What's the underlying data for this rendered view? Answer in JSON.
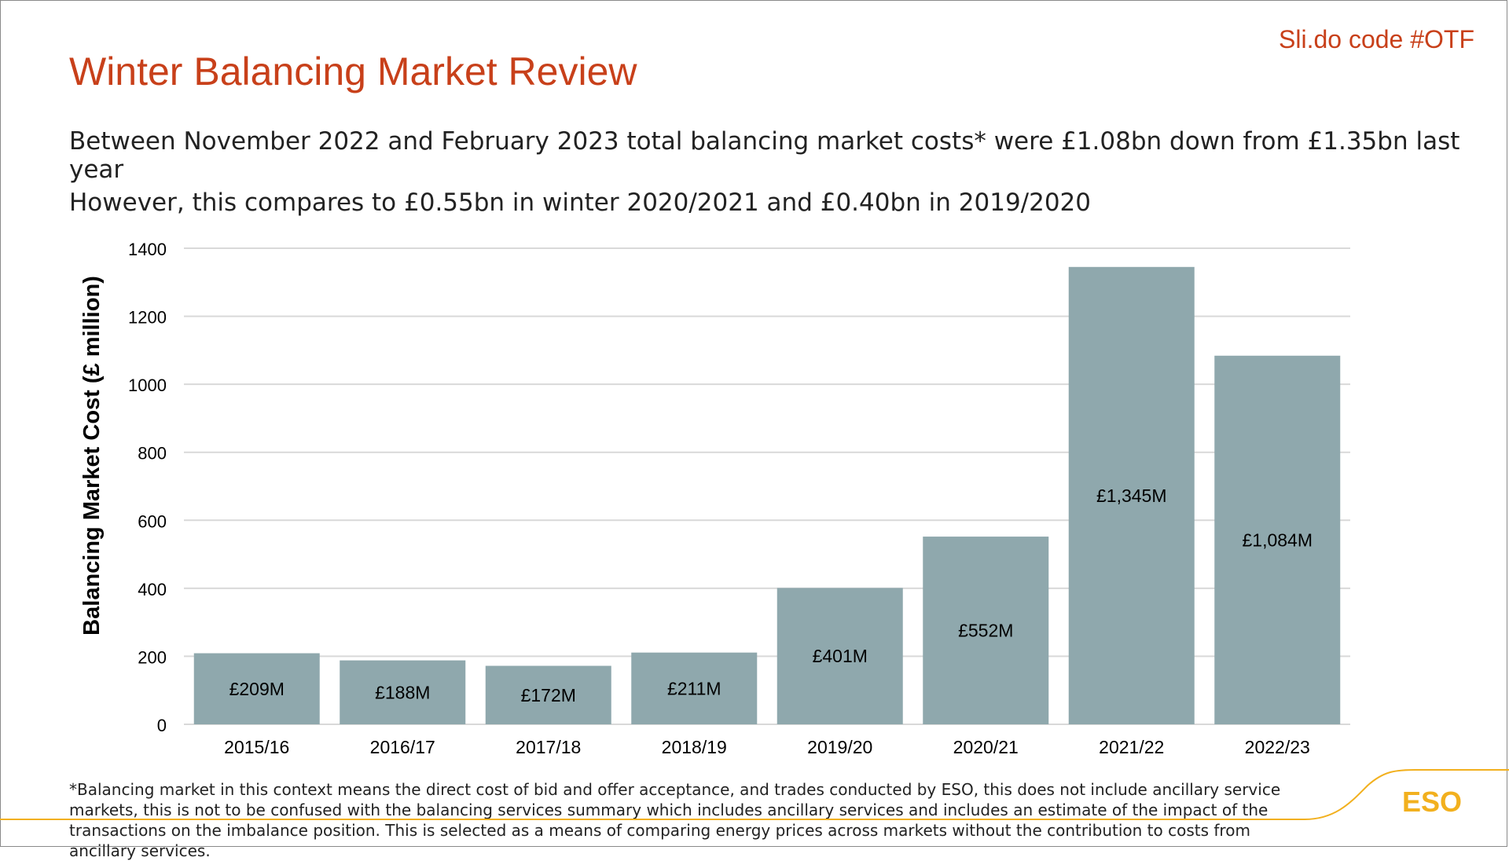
{
  "header": {
    "slido_code": "Sli.do code #OTF",
    "title": "Winter Balancing Market Review",
    "subtitle_1": "Between November 2022 and February 2023 total balancing market costs* were £1.08bn down from £1.35bn last year",
    "subtitle_2": "However, this compares to £0.55bn in winter 2020/2021 and £0.40bn in 2019/2020"
  },
  "chart_data": {
    "type": "bar",
    "title": "",
    "xlabel": "",
    "ylabel": "Balancing Market Cost (£ million)",
    "categories": [
      "2015/16",
      "2016/17",
      "2017/18",
      "2018/19",
      "2019/20",
      "2020/21",
      "2021/22",
      "2022/23"
    ],
    "values": [
      209,
      188,
      172,
      211,
      401,
      552,
      1345,
      1084
    ],
    "data_labels": [
      "£209M",
      "£188M",
      "£172M",
      "£211M",
      "£401M",
      "£552M",
      "£1,345M",
      "£1,084M"
    ],
    "ylim": [
      0,
      1400
    ],
    "yticks": [
      0,
      200,
      400,
      600,
      800,
      1000,
      1200,
      1400
    ],
    "grid": true,
    "bar_color": "#8fa8ad",
    "grid_color": "#d9d9d9"
  },
  "footnote": "*Balancing market in this context means the direct cost of bid and offer acceptance, and trades conducted by ESO, this does not include ancillary service markets, this is not to be confused with the balancing services summary which includes ancillary services and includes an estimate of the impact of the transactions on the imbalance position. This is selected as a means of comparing energy prices across markets without the contribution to costs from ancillary services.",
  "brand": {
    "logo_text": "ESO",
    "accent_color": "#f2b01e",
    "title_color": "#c8401a"
  }
}
